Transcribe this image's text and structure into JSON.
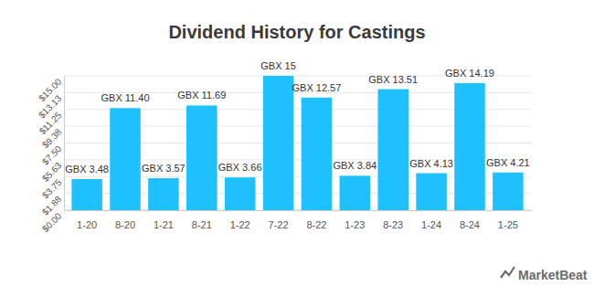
{
  "chart_data": {
    "type": "bar",
    "title": "Dividend History for Castings",
    "categories": [
      "1-20",
      "8-20",
      "1-21",
      "8-21",
      "1-22",
      "7-22",
      "8-22",
      "1-23",
      "8-23",
      "1-24",
      "8-24",
      "1-25"
    ],
    "values": [
      3.48,
      11.4,
      3.57,
      11.69,
      3.66,
      15,
      12.57,
      3.84,
      13.51,
      4.13,
      14.19,
      4.21
    ],
    "value_labels": [
      "GBX 3.48",
      "GBX 11.40",
      "GBX 3.57",
      "GBX 11.69",
      "GBX 3.66",
      "GBX 15",
      "GBX 12.57",
      "GBX 3.84",
      "GBX 13.51",
      "GBX 4.13",
      "GBX 14.19",
      "GBX 4.21"
    ],
    "color": "#1ec0fe",
    "ylim": [
      0,
      15
    ],
    "yticks": [
      {
        "value": 0,
        "label": "$0.00"
      },
      {
        "value": 1.875,
        "label": "$1.88"
      },
      {
        "value": 3.75,
        "label": "$3.75"
      },
      {
        "value": 5.625,
        "label": "$5.63"
      },
      {
        "value": 7.5,
        "label": "$7.50"
      },
      {
        "value": 9.375,
        "label": "$9.38"
      },
      {
        "value": 11.25,
        "label": "$11.25"
      },
      {
        "value": 13.125,
        "label": "$13.13"
      },
      {
        "value": 15,
        "label": "$15.00"
      }
    ],
    "grid": true,
    "data_labels": true,
    "annotations": [
      "MarketBeat"
    ]
  }
}
